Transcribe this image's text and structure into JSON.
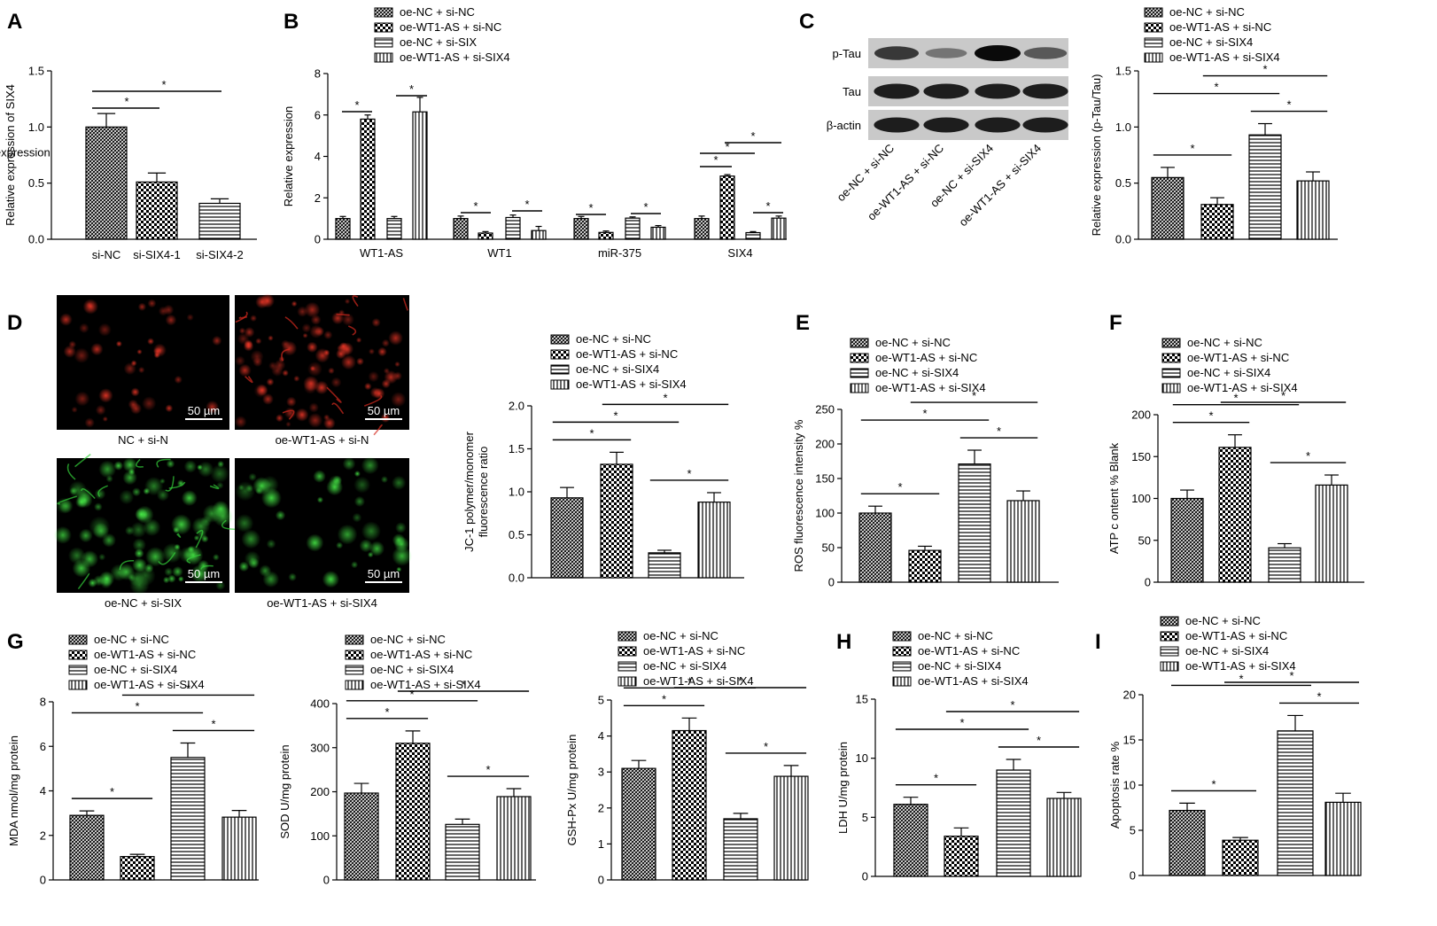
{
  "colors": {
    "ink": "#000000",
    "bar_fill": "#ffffff",
    "micrograph_bg": "#000000",
    "jc1_red": "#d42a1e",
    "jc1_green": "#35d23a"
  },
  "legend_default": [
    "oe-NC + si-NC",
    "oe-WT1-AS + si-NC",
    "oe-NC + si-SIX4",
    "oe-WT1-AS + si-SIX4"
  ],
  "chart_data": [
    {
      "panel": "A",
      "type": "bar",
      "ylabel": "Relative expression of SIX4",
      "ylim": [
        0,
        1.5
      ],
      "yticks": [
        "0.0",
        "0.5",
        "1.0",
        "1.5"
      ],
      "categories": [
        "si-NC",
        "si-SIX4-1",
        "si-SIX4-2"
      ],
      "values": [
        1.0,
        0.51,
        0.32
      ],
      "errors": [
        0.12,
        0.08,
        0.04
      ],
      "star_pairs": [
        [
          0,
          1
        ],
        [
          0,
          2
        ]
      ]
    },
    {
      "panel": "B",
      "type": "bar",
      "ylabel": "Relative expression",
      "ylim": [
        0,
        8
      ],
      "yticks": [
        "0",
        "2",
        "4",
        "6",
        "8"
      ],
      "categories": [
        "WT1-AS",
        "WT1",
        "miR-375",
        "SIX4"
      ],
      "legend": [
        "oe-NC + si-NC",
        "oe-WT1-AS + si-NC",
        "oe-NC + si-SIX",
        "oe-WT1-AS + si-SIX4"
      ],
      "series": [
        {
          "name": "oe-NC + si-NC",
          "values": [
            1.0,
            1.0,
            1.0,
            1.0
          ],
          "errors": [
            0.1,
            0.12,
            0.1,
            0.12
          ]
        },
        {
          "name": "oe-WT1-AS + si-NC",
          "values": [
            5.8,
            0.3,
            0.33,
            3.05
          ],
          "errors": [
            0.2,
            0.07,
            0.07,
            0.07
          ]
        },
        {
          "name": "oe-NC + si-SIX",
          "values": [
            1.0,
            1.05,
            1.02,
            0.32
          ],
          "errors": [
            0.1,
            0.12,
            0.06,
            0.05
          ]
        },
        {
          "name": "oe-WT1-AS + si-SIX4",
          "values": [
            6.15,
            0.42,
            0.58,
            1.02
          ],
          "errors": [
            0.7,
            0.2,
            0.08,
            0.1
          ]
        }
      ]
    },
    {
      "panel": "C",
      "type": "bar",
      "ylabel": "Relative expression (p-Tau/Tau)",
      "ylim": [
        0,
        1.5
      ],
      "yticks": [
        "0.0",
        "0.5",
        "1.0",
        "1.5"
      ],
      "values": [
        0.55,
        0.31,
        0.93,
        0.52
      ],
      "errors": [
        0.09,
        0.06,
        0.1,
        0.08
      ],
      "star_pairs": [
        [
          0,
          1
        ],
        [
          0,
          2
        ],
        [
          2,
          3
        ],
        [
          1,
          3
        ]
      ]
    },
    {
      "panel": "D",
      "type": "bar",
      "ylabel": [
        "JC-1 polymer/monomer",
        "fluorescence ratio"
      ],
      "ylim": [
        0,
        2.0
      ],
      "yticks": [
        "0.0",
        "0.5",
        "1.0",
        "1.5",
        "2.0"
      ],
      "values": [
        0.93,
        1.32,
        0.29,
        0.88
      ],
      "errors": [
        0.12,
        0.14,
        0.03,
        0.11
      ],
      "star_pairs": [
        [
          0,
          1
        ],
        [
          0,
          2
        ],
        [
          1,
          3
        ],
        [
          2,
          3
        ]
      ]
    },
    {
      "panel": "E",
      "type": "bar",
      "ylabel": "ROS fluorescence intensity %",
      "ylim": [
        0,
        250
      ],
      "yticks": [
        "0",
        "50",
        "100",
        "150",
        "200",
        "250"
      ],
      "values": [
        100,
        46,
        171,
        118
      ],
      "errors": [
        10,
        6,
        20,
        14
      ],
      "star_pairs": [
        [
          0,
          1
        ],
        [
          0,
          2
        ],
        [
          2,
          3
        ],
        [
          1,
          3
        ]
      ]
    },
    {
      "panel": "F",
      "type": "bar",
      "ylabel": "ATP c ontent % Blank",
      "ylim": [
        0,
        200
      ],
      "yticks": [
        "0",
        "50",
        "100",
        "150",
        "200"
      ],
      "values": [
        100,
        161,
        41,
        116
      ],
      "errors": [
        10,
        15,
        5,
        12
      ],
      "star_pairs": [
        [
          0,
          1
        ],
        [
          0,
          2
        ],
        [
          1,
          3
        ],
        [
          2,
          3
        ]
      ]
    },
    {
      "panel": "G",
      "type": "bar",
      "ylabel": "MDA nmol/mg protein",
      "ylim": [
        0,
        8
      ],
      "yticks": [
        "0",
        "2",
        "4",
        "6",
        "8"
      ],
      "values": [
        2.9,
        1.05,
        5.5,
        2.82
      ],
      "errors": [
        0.2,
        0.1,
        0.65,
        0.3
      ],
      "star_pairs": [
        [
          0,
          1
        ],
        [
          0,
          2
        ],
        [
          2,
          3
        ],
        [
          1,
          3
        ]
      ]
    },
    {
      "panel": "G2",
      "type": "bar",
      "ylabel": "SOD U/mg protein",
      "ylim": [
        0,
        400
      ],
      "yticks": [
        "0",
        "100",
        "200",
        "300",
        "400"
      ],
      "values": [
        197,
        310,
        126,
        189
      ],
      "errors": [
        22,
        28,
        12,
        18
      ],
      "star_pairs": [
        [
          0,
          1
        ],
        [
          0,
          2
        ],
        [
          1,
          3
        ],
        [
          2,
          3
        ]
      ]
    },
    {
      "panel": "G3",
      "type": "bar",
      "ylabel": "GSH-Px U/mg protein",
      "ylim": [
        0,
        5
      ],
      "yticks": [
        "0",
        "1",
        "2",
        "3",
        "4",
        "5"
      ],
      "values": [
        3.1,
        4.15,
        1.7,
        2.88
      ],
      "errors": [
        0.22,
        0.35,
        0.15,
        0.3
      ],
      "star_pairs": [
        [
          0,
          1
        ],
        [
          0,
          2
        ],
        [
          1,
          3
        ],
        [
          2,
          3
        ]
      ]
    },
    {
      "panel": "H",
      "type": "bar",
      "ylabel": "LDH U/mg protein",
      "ylim": [
        0,
        15
      ],
      "yticks": [
        "0",
        "5",
        "10",
        "15"
      ],
      "values": [
        6.1,
        3.4,
        9.0,
        6.6
      ],
      "errors": [
        0.6,
        0.7,
        0.9,
        0.5
      ],
      "star_pairs": [
        [
          0,
          1
        ],
        [
          0,
          2
        ],
        [
          1,
          3
        ],
        [
          2,
          3
        ]
      ]
    },
    {
      "panel": "I",
      "type": "bar",
      "ylabel": "Apoptosis rate %",
      "ylim": [
        0,
        20
      ],
      "yticks": [
        "0",
        "5",
        "10",
        "15",
        "20"
      ],
      "values": [
        7.2,
        3.9,
        16.0,
        8.1
      ],
      "errors": [
        0.8,
        0.3,
        1.7,
        1.0
      ],
      "star_pairs": [
        [
          0,
          1
        ],
        [
          0,
          2
        ],
        [
          2,
          3
        ],
        [
          1,
          3
        ]
      ]
    }
  ],
  "western_blot": {
    "rows": [
      "p-Tau",
      "Tau",
      "β-actin"
    ],
    "lanes": [
      "oe-NC + si-NC",
      "oe-WT1-AS + si-NC",
      "oe-NC + si-SIX4",
      "oe-WT1-AS + si-SIX4"
    ],
    "band_intensity": [
      [
        0.75,
        0.35,
        1.0,
        0.55
      ],
      [
        0.9,
        0.9,
        0.9,
        0.9
      ],
      [
        0.9,
        0.9,
        0.9,
        0.9
      ]
    ]
  },
  "micrographs": {
    "captions": [
      "NC + si-N",
      "oe-WT1-AS + si-N",
      "oe-NC + si-SIX",
      "oe-WT1-AS + si-SIX4"
    ],
    "scale": "50 µm"
  },
  "panel_labels": [
    "A",
    "B",
    "C",
    "D",
    "E",
    "F",
    "G",
    "H",
    "I"
  ],
  "star": "*"
}
